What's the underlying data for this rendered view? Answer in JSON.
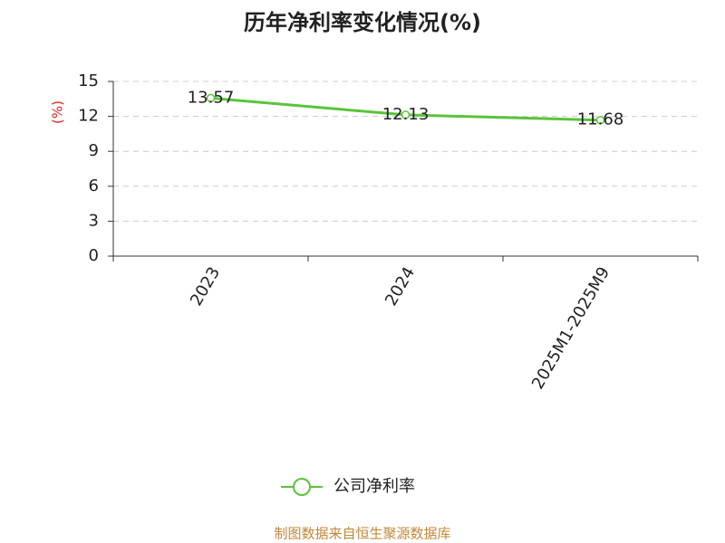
{
  "chart_data": {
    "type": "line",
    "title": "历年净利率变化情况(%)",
    "y_label": "(%)",
    "categories": [
      "2023",
      "2024",
      "2025M1-2025M9"
    ],
    "series": [
      {
        "name": "公司净利率",
        "color": "#5ac43a",
        "values": [
          13.57,
          12.13,
          11.68
        ]
      }
    ],
    "ylim": [
      0,
      15
    ],
    "yticks": [
      0,
      3,
      6,
      9,
      12,
      15
    ],
    "grid": true,
    "legend": "bottom",
    "footer": "制图数据来自恒生聚源数据库"
  }
}
